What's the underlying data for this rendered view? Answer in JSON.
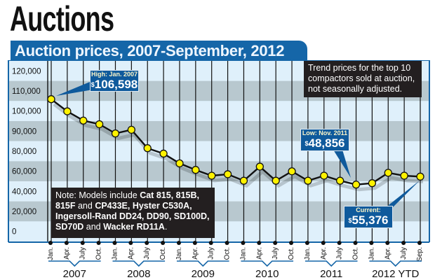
{
  "header": {
    "title": "Auctions"
  },
  "chart_data": {
    "type": "line",
    "title": "Auction prices, 2007-September, 2012",
    "x": [
      "Jan. 2007",
      "Apr. 2007",
      "July 2007",
      "Oct. 2007",
      "Jan. 2008",
      "Apr. 2008",
      "July 2008",
      "Oct. 2008",
      "Jan. 2009",
      "Apr. 2009",
      "July 2009",
      "Oct. 2009",
      "Jan. 2010",
      "Apr. 2010",
      "July 2010",
      "Oct. 2010",
      "Jan. 2011",
      "Apr. 2011",
      "July 2011",
      "Oct. 2011",
      "Jan. 2012",
      "Apr. 2012",
      "July 2012",
      "Sep. 2012"
    ],
    "tick_labels": [
      "Jan.",
      "Apr.",
      "July",
      "Oct.",
      "Jan.",
      "Apr.",
      "July",
      "Oct.",
      "Jan.",
      "Apr.",
      "July",
      "Oct.",
      "Jan.",
      "Apr.",
      "July",
      "Oct.",
      "Jan.",
      "Apr.",
      "July",
      "Oct.",
      "Jan.",
      "Apr.",
      "July",
      "Sep."
    ],
    "year_labels": [
      "2007",
      "2008",
      "2009",
      "2010",
      "2011",
      "2012 YTD"
    ],
    "values": [
      106598,
      100000,
      95000,
      93000,
      88000,
      90000,
      80000,
      75000,
      66000,
      60000,
      56000,
      57000,
      52000,
      63000,
      52000,
      59000,
      52000,
      56000,
      52000,
      48856,
      50000,
      58000,
      56000,
      55376
    ],
    "y_tick_labels": [
      "120,000",
      "110,000",
      "100,000",
      "90,000",
      "80,000",
      "60,000",
      "40,000",
      "20,000",
      "0"
    ],
    "ylim": [
      0,
      120000
    ],
    "grid": true,
    "colors": {
      "line": "#111111",
      "marker": "#fff200",
      "frame": "#1566a8",
      "band_light": "#dff0fb",
      "band_dark": "#b8c8cf"
    },
    "annotations": {
      "high": {
        "label": "High: Jan. 2007",
        "currency": "$",
        "value": "106,598"
      },
      "low": {
        "label": "Low: Nov. 2011",
        "currency": "$",
        "value": "48,856"
      },
      "current": {
        "label": "Current:",
        "currency": "$",
        "value": "55,376"
      }
    },
    "trend_note": "Trend prices for the top 10 compactors sold at auction, not seasonally adjusted.",
    "models_note": [
      {
        "t": "Note: Models include ",
        "b": false
      },
      {
        "t": "Cat 815, 815B, 815F",
        "b": true
      },
      {
        "t": " and ",
        "b": false
      },
      {
        "t": "CP433E, Hyster C530A, Ingersoll-Rand DD24, DD90, SD100D, SD70D",
        "b": true
      },
      {
        "t": " and ",
        "b": false
      },
      {
        "t": "Wacker RD11A",
        "b": true
      },
      {
        "t": ".",
        "b": false
      }
    ]
  }
}
